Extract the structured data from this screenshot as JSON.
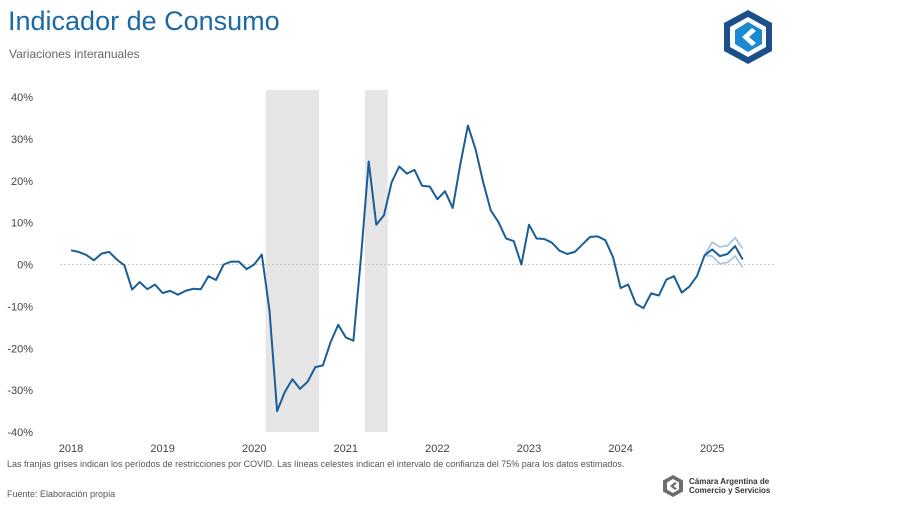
{
  "header": {
    "title": "Indicador de Consumo",
    "subtitle": "Variaciones interanuales"
  },
  "footer": {
    "note": "Las franjas grises indican los períodos de restricciones por COVID. Las líneas celestes indican el intervalo de confianza del 75% para los datos estimados.",
    "source": "Fuente: Elaboración propia",
    "brand": "Cámara Argentina de Comercio y Servicios"
  },
  "colors": {
    "line": "#1b5e96",
    "ci": "#a9c6e4",
    "shade": "#e6e6e6",
    "title": "#1b6aa6"
  },
  "chart_data": {
    "type": "line",
    "title": "Indicador de Consumo",
    "subtitle": "Variaciones interanuales",
    "ylim": [
      -40,
      40
    ],
    "yticks": [
      40,
      30,
      20,
      10,
      0,
      -10,
      -20,
      -30,
      -40
    ],
    "ytick_labels": [
      "40%",
      "30%",
      "20%",
      "10%",
      "0%",
      "-10%",
      "-20%",
      "-30%",
      "-40%"
    ],
    "xticks": [
      "2018",
      "2019",
      "2020",
      "2021",
      "2022",
      "2023",
      "2024",
      "2025"
    ],
    "zero_line": true,
    "shaded_periods": [
      {
        "from": "2020-03",
        "to": "2020-09"
      },
      {
        "from": "2021-04",
        "to": "2021-06"
      }
    ],
    "series": [
      {
        "start": "2018-01",
        "values": [
          3.4,
          3.0,
          2.3,
          1.0,
          2.6,
          3.0,
          1.2,
          -0.2,
          -6.0,
          -4.2,
          -5.9,
          -4.8,
          -6.8,
          -6.3,
          -7.2,
          -6.3,
          -5.8,
          -5.9,
          -2.8,
          -3.7,
          0.0,
          0.7,
          0.7,
          -1.1,
          0.0,
          2.4,
          -11.0,
          -35.0,
          -30.5,
          -27.4,
          -29.7,
          -28.0,
          -24.5,
          -24.1,
          -18.6,
          -14.4,
          -17.4,
          -18.2,
          2.0,
          24.6,
          9.5,
          11.8,
          19.6,
          23.4,
          21.7,
          22.6,
          18.8,
          18.6,
          15.6,
          17.5,
          13.5,
          23.9,
          33.2,
          27.5,
          19.6,
          12.9,
          10.1,
          6.2,
          5.6,
          0.0,
          9.5,
          6.2,
          6.1,
          5.2,
          3.3,
          2.5,
          3.0,
          4.8,
          6.6,
          6.7,
          5.8,
          1.8,
          -5.6,
          -4.8,
          -9.4,
          -10.4,
          -6.9,
          -7.4,
          -3.6,
          -2.8,
          -6.7,
          -5.3,
          -2.8,
          2.2,
          3.6,
          2.0,
          2.5,
          4.4,
          1.2
        ]
      }
    ],
    "confidence_interval_75": {
      "start": "2024-12",
      "upper": [
        2.2,
        5.3,
        4.2,
        4.5,
        6.4,
        3.8
      ],
      "lower": [
        2.2,
        2.0,
        0.2,
        0.5,
        2.0,
        -0.7
      ]
    }
  }
}
